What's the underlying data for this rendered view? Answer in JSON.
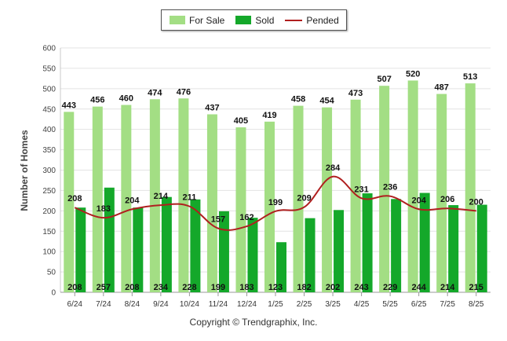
{
  "legend": {
    "for_sale": "For Sale",
    "sold": "Sold",
    "pended": "Pended"
  },
  "ylabel": "Number of Homes",
  "copyright": "Copyright © Trendgraphix, Inc.",
  "colors": {
    "for_sale": "#a3de84",
    "sold": "#14a82a",
    "pended": "#b01f1f"
  },
  "chart_data": {
    "type": "bar",
    "categories": [
      "6/24",
      "7/24",
      "8/24",
      "9/24",
      "10/24",
      "11/24",
      "12/24",
      "1/25",
      "2/25",
      "3/25",
      "4/25",
      "5/25",
      "6/25",
      "7/25",
      "8/25"
    ],
    "series": [
      {
        "name": "For Sale",
        "type": "bar",
        "values": [
          443,
          456,
          460,
          474,
          476,
          437,
          405,
          419,
          458,
          454,
          473,
          507,
          520,
          487,
          513
        ]
      },
      {
        "name": "Sold",
        "type": "bar",
        "values": [
          208,
          257,
          208,
          234,
          228,
          199,
          183,
          123,
          182,
          202,
          243,
          229,
          244,
          214,
          215
        ]
      },
      {
        "name": "Pended",
        "type": "line",
        "values": [
          208,
          183,
          204,
          214,
          211,
          157,
          162,
          199,
          209,
          284,
          231,
          236,
          204,
          206,
          200
        ]
      }
    ],
    "ylim": [
      0,
      600
    ],
    "yticks": [
      0,
      50,
      100,
      150,
      200,
      250,
      300,
      350,
      400,
      450,
      500,
      550,
      600
    ],
    "grid": true,
    "legend_position": "top-center"
  }
}
